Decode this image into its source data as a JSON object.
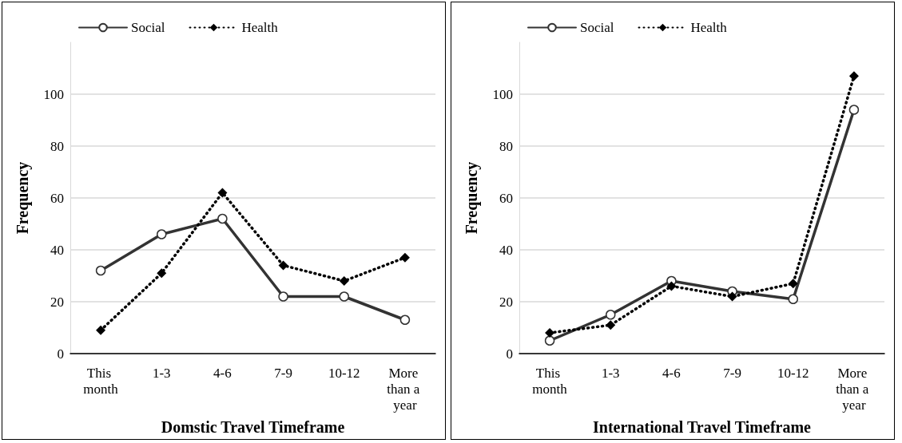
{
  "chart_data": [
    {
      "type": "line",
      "xlabel": "Domstic Travel Timeframe",
      "ylabel": "Frequency",
      "categories": [
        "This month",
        "1-3",
        "4-6",
        "7-9",
        "10-12",
        "More than a year"
      ],
      "ylim": [
        0,
        120
      ],
      "yticks": [
        0,
        20,
        40,
        60,
        80,
        100
      ],
      "grid": "y",
      "legend": "top left",
      "series": [
        {
          "name": "Social",
          "color": "#333333",
          "marker": "circle",
          "line_style": "solid",
          "values": [
            32,
            46,
            52,
            22,
            22,
            13
          ]
        },
        {
          "name": "Health",
          "color": "#000000",
          "marker": "diamond",
          "line_style": "dotted",
          "values": [
            9,
            31,
            62,
            34,
            28,
            37
          ]
        }
      ]
    },
    {
      "type": "line",
      "xlabel": "International Travel Timeframe",
      "ylabel": "Frequency",
      "categories": [
        "This month",
        "1-3",
        "4-6",
        "7-9",
        "10-12",
        "More than a year"
      ],
      "ylim": [
        0,
        120
      ],
      "yticks": [
        0,
        20,
        40,
        60,
        80,
        100
      ],
      "grid": "y",
      "legend": "top left",
      "series": [
        {
          "name": "Social",
          "color": "#333333",
          "marker": "circle",
          "line_style": "solid",
          "values": [
            5,
            15,
            28,
            24,
            21,
            94
          ]
        },
        {
          "name": "Health",
          "color": "#000000",
          "marker": "diamond",
          "line_style": "dotted",
          "values": [
            8,
            11,
            26,
            22,
            27,
            107
          ]
        }
      ]
    }
  ]
}
